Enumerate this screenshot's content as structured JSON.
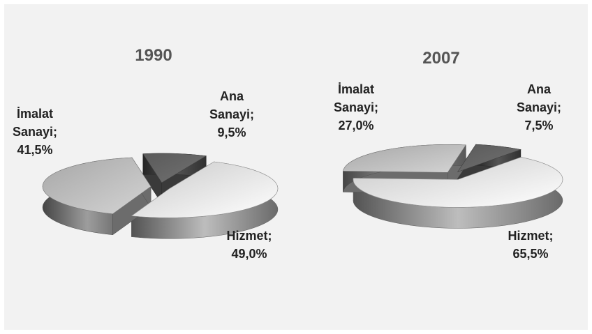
{
  "chart_data": [
    {
      "type": "pie",
      "title": "1990",
      "categories": [
        "Ana Sanayi;",
        "Hizmet;",
        "İmalat Sanayi;"
      ],
      "values": [
        9.5,
        49.0,
        41.5
      ],
      "value_labels": [
        "9,5%",
        "49,0%",
        "41,5%"
      ],
      "colors": [
        "#6a6a6a",
        "#ececec",
        "#c4c4c4"
      ]
    },
    {
      "type": "pie",
      "title": "2007",
      "categories": [
        "Ana Sanayi;",
        "Hizmet;",
        "İmalat Sanayi;"
      ],
      "values": [
        7.5,
        65.5,
        27.0
      ],
      "value_labels": [
        "7,5%",
        "65,5%",
        "27,0%"
      ],
      "colors": [
        "#6a6a6a",
        "#ececec",
        "#c4c4c4"
      ]
    }
  ]
}
